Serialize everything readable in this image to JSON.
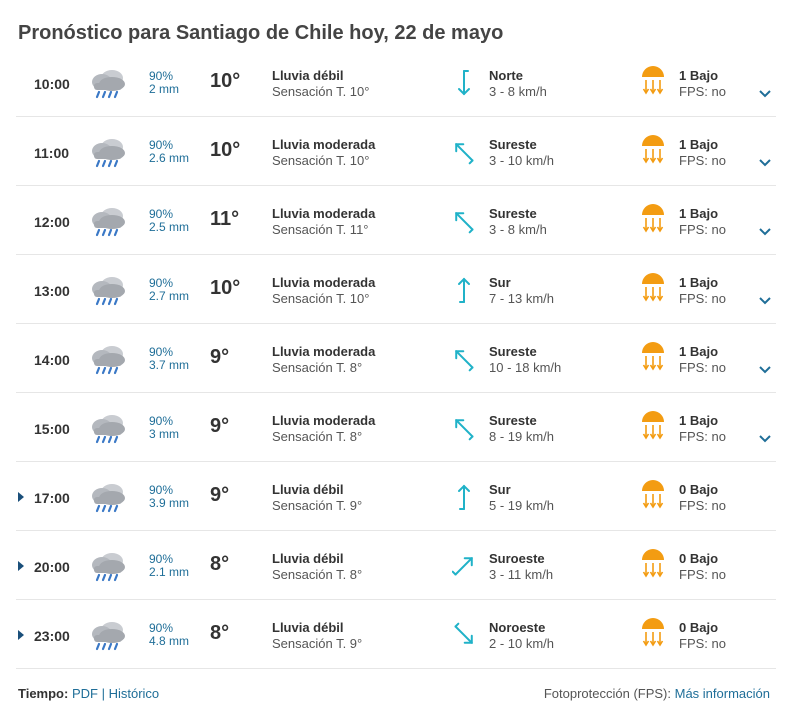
{
  "header": {
    "title": "Pronóstico para Santiago de Chile hoy, 22 de mayo"
  },
  "rows": [
    {
      "time": "10:00",
      "prob": "90%",
      "mm": "2 mm",
      "temp": "10°",
      "cond": "Lluvia débil",
      "feel": "Sensación T. 10°",
      "wind_dir": "Norte",
      "wind_speed": "3 - 8 km/h",
      "uv": "1 Bajo",
      "fps": "FPS: no",
      "expandable": "down",
      "arrow": "down-icon"
    },
    {
      "time": "11:00",
      "prob": "90%",
      "mm": "2.6 mm",
      "temp": "10°",
      "cond": "Lluvia moderada",
      "feel": "Sensación T. 10°",
      "wind_dir": "Sureste",
      "wind_speed": "3 - 10 km/h",
      "uv": "1 Bajo",
      "fps": "FPS: no",
      "expandable": "down",
      "arrow": "northwest-icon"
    },
    {
      "time": "12:00",
      "prob": "90%",
      "mm": "2.5 mm",
      "temp": "11°",
      "cond": "Lluvia moderada",
      "feel": "Sensación T. 11°",
      "wind_dir": "Sureste",
      "wind_speed": "3 - 8 km/h",
      "uv": "1 Bajo",
      "fps": "FPS: no",
      "expandable": "down",
      "arrow": "northwest-icon"
    },
    {
      "time": "13:00",
      "prob": "90%",
      "mm": "2.7 mm",
      "temp": "10°",
      "cond": "Lluvia moderada",
      "feel": "Sensación T. 10°",
      "wind_dir": "Sur",
      "wind_speed": "7 - 13 km/h",
      "uv": "1 Bajo",
      "fps": "FPS: no",
      "expandable": "down",
      "arrow": "up-icon"
    },
    {
      "time": "14:00",
      "prob": "90%",
      "mm": "3.7 mm",
      "temp": "9°",
      "cond": "Lluvia moderada",
      "feel": "Sensación T. 8°",
      "wind_dir": "Sureste",
      "wind_speed": "10 - 18 km/h",
      "uv": "1 Bajo",
      "fps": "FPS: no",
      "expandable": "down",
      "arrow": "northwest-icon"
    },
    {
      "time": "15:00",
      "prob": "90%",
      "mm": "3 mm",
      "temp": "9°",
      "cond": "Lluvia moderada",
      "feel": "Sensación T. 8°",
      "wind_dir": "Sureste",
      "wind_speed": "8 - 19 km/h",
      "uv": "1 Bajo",
      "fps": "FPS: no",
      "expandable": "down",
      "arrow": "northwest-icon"
    },
    {
      "time": "17:00",
      "prob": "90%",
      "mm": "3.9 mm",
      "temp": "9°",
      "cond": "Lluvia débil",
      "feel": "Sensación T. 9°",
      "wind_dir": "Sur",
      "wind_speed": "5 - 19 km/h",
      "uv": "0 Bajo",
      "fps": "FPS: no",
      "expandable": "right",
      "arrow": "up-icon"
    },
    {
      "time": "20:00",
      "prob": "90%",
      "mm": "2.1 mm",
      "temp": "8°",
      "cond": "Lluvia débil",
      "feel": "Sensación T. 8°",
      "wind_dir": "Suroeste",
      "wind_speed": "3 - 11 km/h",
      "uv": "0 Bajo",
      "fps": "FPS: no",
      "expandable": "right",
      "arrow": "northeast-icon"
    },
    {
      "time": "23:00",
      "prob": "90%",
      "mm": "4.8 mm",
      "temp": "8°",
      "cond": "Lluvia débil",
      "feel": "Sensación T. 9°",
      "wind_dir": "Noroeste",
      "wind_speed": "2 - 10 km/h",
      "uv": "0 Bajo",
      "fps": "FPS: no",
      "expandable": "right",
      "arrow": "southeast-icon"
    }
  ],
  "footer": {
    "tiempo_label": "Tiempo:",
    "pdf_link": "PDF",
    "separator": "|",
    "historico_link": "Histórico",
    "fps_label": "Fotoprotección (FPS):",
    "more_info_link": "Más información"
  },
  "colors": {
    "accent": "#1f6e98",
    "wind_arrow": "#20b2c8",
    "sun": "#f39c12",
    "rain": "#3a78c6"
  }
}
